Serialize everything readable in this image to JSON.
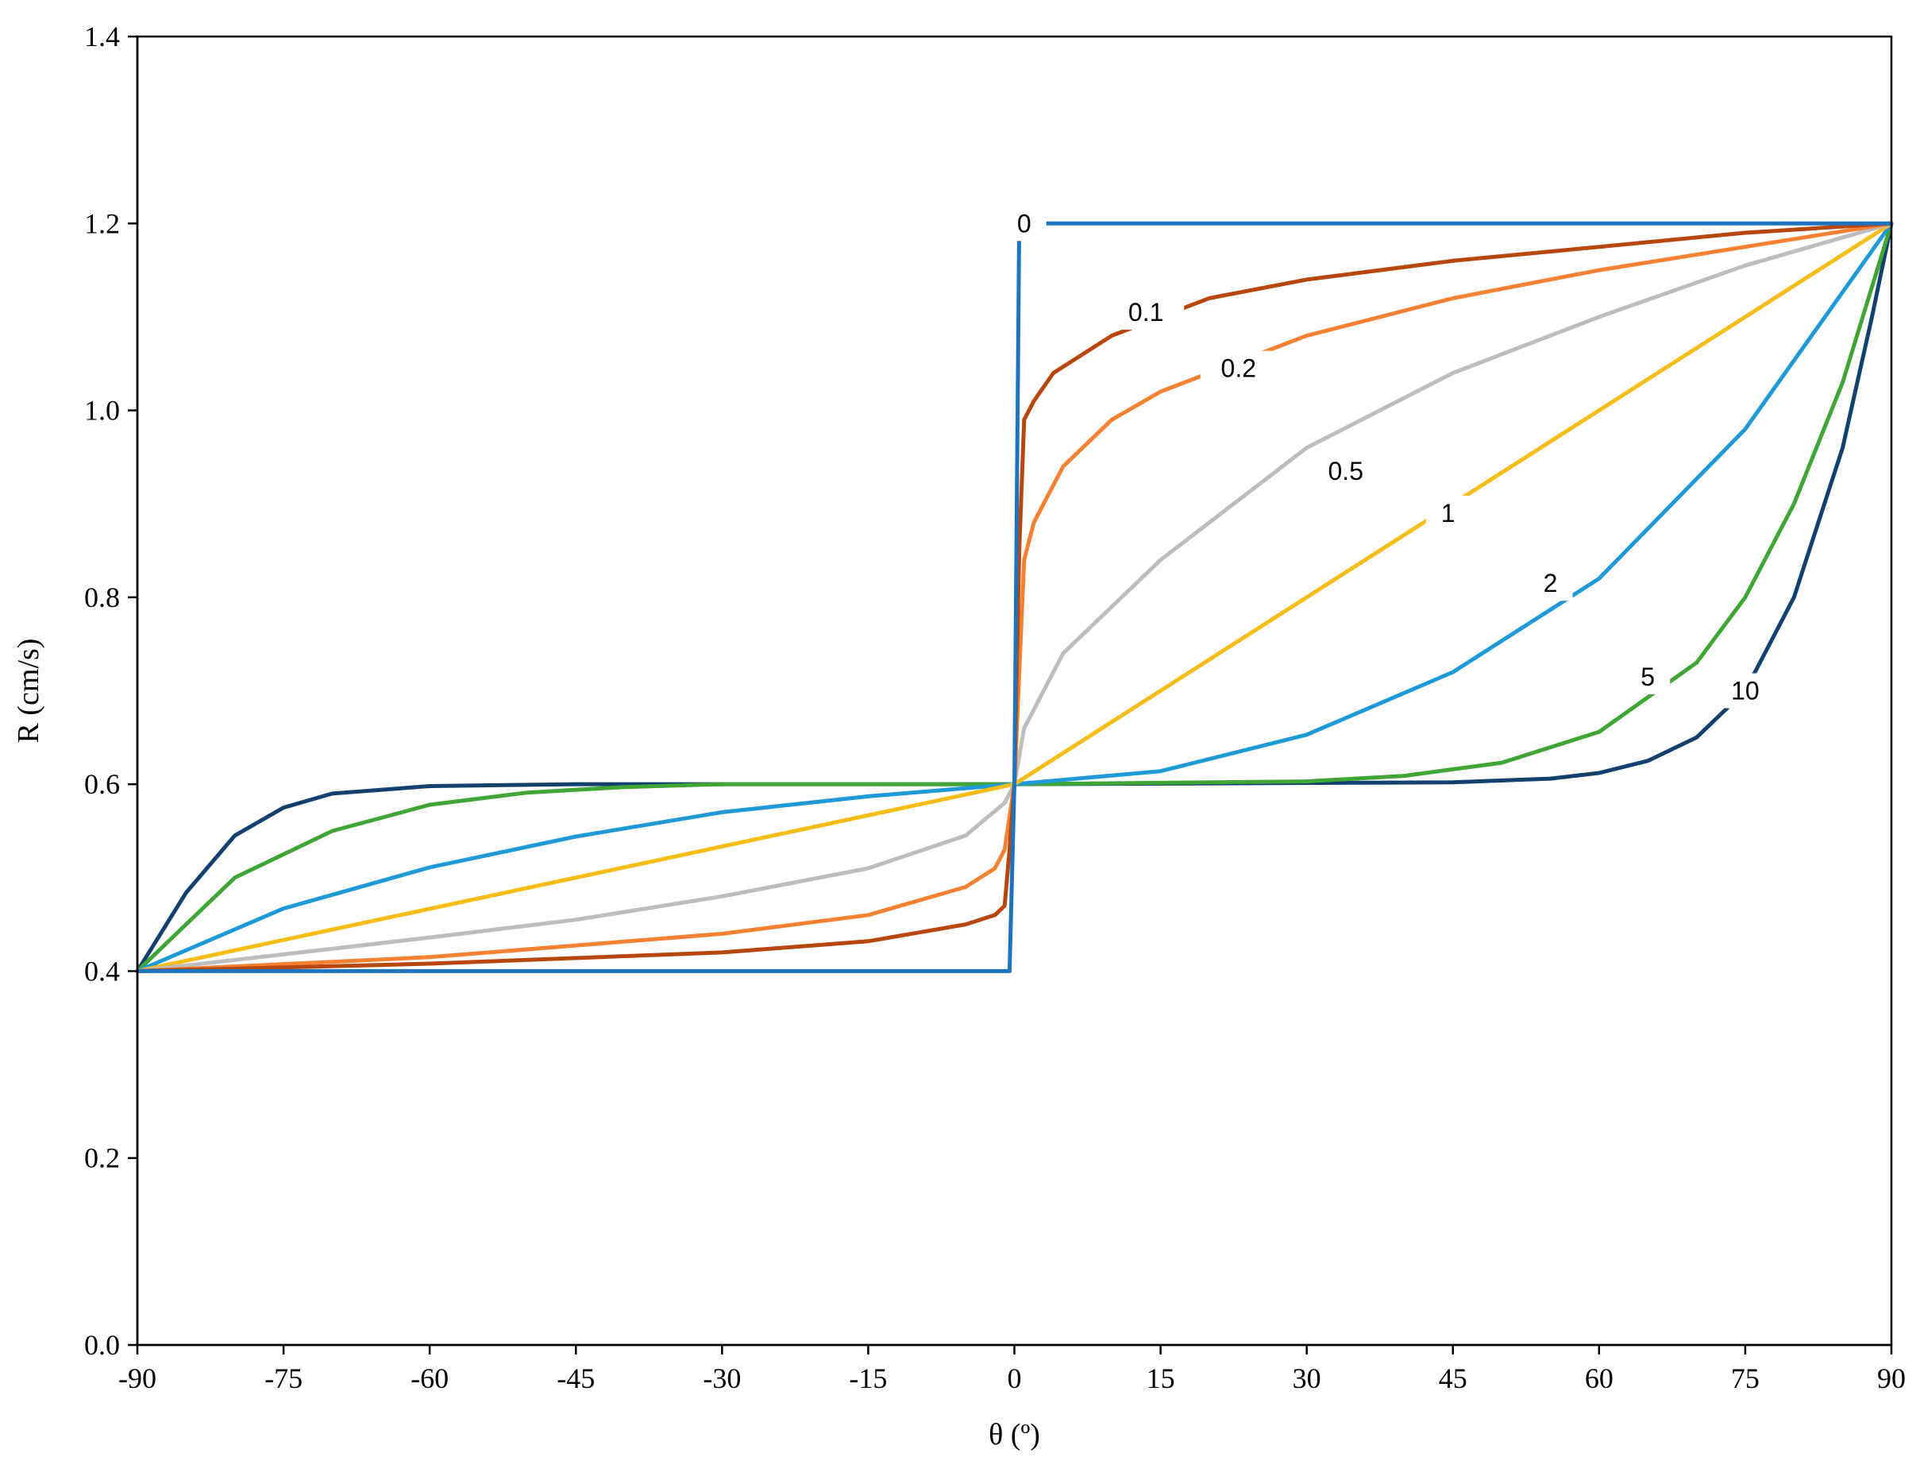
{
  "chart_data": {
    "type": "line",
    "xlabel": "θ (º)",
    "ylabel": "R (cm/s)",
    "xlim": [
      -90,
      90
    ],
    "ylim": [
      0.0,
      1.4
    ],
    "xticks": [
      -90,
      -75,
      -60,
      -45,
      -30,
      -15,
      0,
      15,
      30,
      45,
      60,
      75,
      90
    ],
    "yticks": [
      0.0,
      0.2,
      0.4,
      0.6,
      0.8,
      1.0,
      1.2,
      1.4
    ],
    "xtick_labels": [
      "-90",
      "-75",
      "-60",
      "-45",
      "-30",
      "-15",
      "0",
      "15",
      "30",
      "45",
      "60",
      "75",
      "90"
    ],
    "ytick_labels": [
      "0.0",
      "0.2",
      "0.4",
      "0.6",
      "0.8",
      "1.0",
      "1.2",
      "1.4"
    ],
    "grid": false,
    "legend": "none",
    "series": [
      {
        "label": "10",
        "color": "#12416f",
        "x": [
          -90,
          -85,
          -80,
          -75,
          -70,
          -60,
          -45,
          0,
          45,
          55,
          60,
          65,
          70,
          75,
          80,
          85,
          88,
          90
        ],
        "y": [
          0.4,
          0.484,
          0.545,
          0.575,
          0.59,
          0.598,
          0.6,
          0.6,
          0.602,
          0.606,
          0.612,
          0.625,
          0.65,
          0.7,
          0.8,
          0.96,
          1.1,
          1.2
        ]
      },
      {
        "label": "5",
        "color": "#3fa535",
        "x": [
          -90,
          -80,
          -70,
          -60,
          -50,
          -40,
          -30,
          0,
          30,
          40,
          50,
          60,
          70,
          75,
          80,
          85,
          90
        ],
        "y": [
          0.4,
          0.5,
          0.55,
          0.578,
          0.591,
          0.597,
          0.6,
          0.6,
          0.603,
          0.609,
          0.623,
          0.656,
          0.73,
          0.8,
          0.9,
          1.03,
          1.2
        ]
      },
      {
        "label": "2",
        "color": "#1f9ad6",
        "x": [
          -90,
          -75,
          -60,
          -45,
          -30,
          -15,
          0,
          15,
          30,
          45,
          60,
          75,
          90
        ],
        "y": [
          0.4,
          0.467,
          0.511,
          0.544,
          0.57,
          0.587,
          0.6,
          0.614,
          0.653,
          0.72,
          0.82,
          0.98,
          1.2
        ]
      },
      {
        "label": "1",
        "color": "#f5bd16",
        "x": [
          -90,
          0,
          90
        ],
        "y": [
          0.4,
          0.6,
          1.2
        ]
      },
      {
        "label": "0.5",
        "color": "#bdbdbd",
        "x": [
          -90,
          -75,
          -60,
          -45,
          -30,
          -15,
          -5,
          -1,
          0,
          1,
          5,
          15,
          30,
          45,
          60,
          75,
          90
        ],
        "y": [
          0.4,
          0.418,
          0.436,
          0.455,
          0.48,
          0.51,
          0.545,
          0.58,
          0.6,
          0.66,
          0.74,
          0.84,
          0.96,
          1.04,
          1.1,
          1.155,
          1.2
        ]
      },
      {
        "label": "0.2",
        "color": "#f58233",
        "x": [
          -90,
          -60,
          -30,
          -15,
          -5,
          -2,
          -1,
          0,
          1,
          2,
          5,
          10,
          15,
          30,
          45,
          60,
          75,
          90
        ],
        "y": [
          0.4,
          0.415,
          0.44,
          0.46,
          0.49,
          0.51,
          0.53,
          0.6,
          0.84,
          0.88,
          0.94,
          0.99,
          1.02,
          1.08,
          1.12,
          1.15,
          1.175,
          1.2
        ]
      },
      {
        "label": "0.1",
        "color": "#b8470e",
        "x": [
          -90,
          -60,
          -30,
          -15,
          -5,
          -2,
          -1,
          -0.5,
          0,
          0.5,
          1,
          2,
          4,
          10,
          20,
          30,
          45,
          60,
          75,
          90
        ],
        "y": [
          0.4,
          0.408,
          0.42,
          0.432,
          0.45,
          0.46,
          0.47,
          0.53,
          0.6,
          0.85,
          0.99,
          1.01,
          1.04,
          1.08,
          1.12,
          1.14,
          1.16,
          1.175,
          1.19,
          1.2
        ]
      },
      {
        "label": "0",
        "color": "#1e73be",
        "x": [
          -90,
          -0.5,
          0,
          0.5,
          90
        ],
        "y": [
          0.4,
          0.4,
          0.6,
          1.2,
          1.2
        ]
      }
    ],
    "annotations": [
      {
        "text": "0",
        "x": 1,
        "y": 1.2,
        "color": "#1e73be"
      },
      {
        "text": "0.1",
        "x": 13.5,
        "y": 1.105,
        "color": "#b8470e"
      },
      {
        "text": "0.2",
        "x": 23,
        "y": 1.045,
        "color": "#f58233"
      },
      {
        "text": "0.5",
        "x": 34,
        "y": 0.935,
        "color": "#bdbdbd"
      },
      {
        "text": "1",
        "x": 44.5,
        "y": 0.89,
        "color": "#f5bd16"
      },
      {
        "text": "2",
        "x": 55,
        "y": 0.815,
        "color": "#1f9ad6"
      },
      {
        "text": "5",
        "x": 65,
        "y": 0.715,
        "color": "#3fa535"
      },
      {
        "text": "10",
        "x": 75,
        "y": 0.7,
        "color": "#12416f"
      }
    ]
  }
}
